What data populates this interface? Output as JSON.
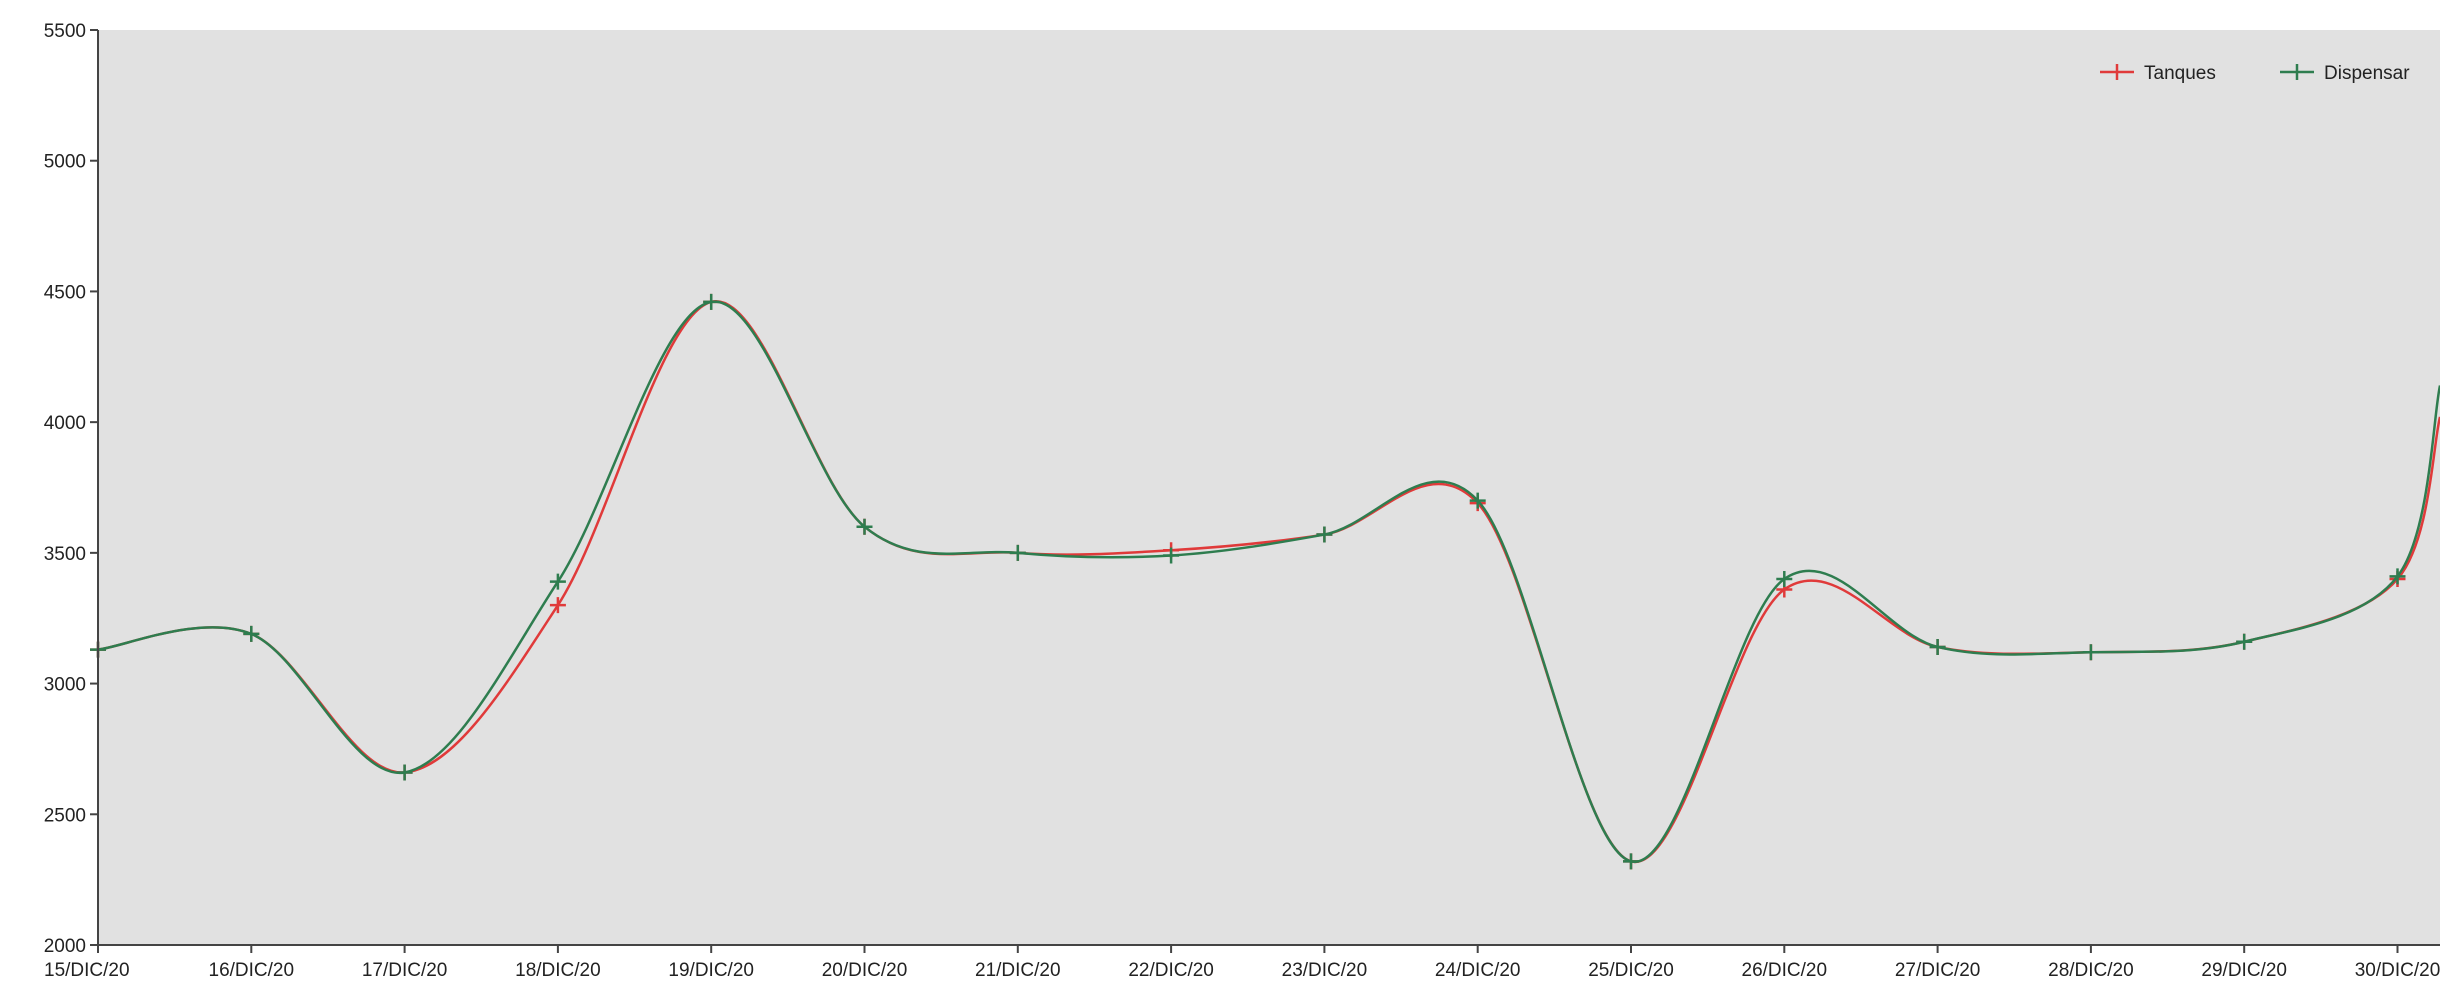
{
  "chart_data": {
    "type": "line",
    "title": "",
    "xlabel": "",
    "ylabel": "",
    "ylim": [
      2000,
      5500
    ],
    "yticks": [
      2000,
      2500,
      3000,
      3500,
      4000,
      4500,
      5000,
      5500
    ],
    "grid": false,
    "legend_position": "top-right",
    "categories": [
      "15/DIC/20",
      "16/DIC/20",
      "17/DIC/20",
      "18/DIC/20",
      "19/DIC/20",
      "20/DIC/20",
      "21/DIC/20",
      "22/DIC/20",
      "23/DIC/20",
      "24/DIC/20",
      "25/DIC/20",
      "26/DIC/20",
      "27/DIC/20",
      "28/DIC/20",
      "29/DIC/20",
      "30/DIC/20"
    ],
    "series": [
      {
        "name": "Tanques",
        "color": "#e03a3a",
        "values": [
          3130,
          3190,
          2660,
          3300,
          4460,
          3600,
          3500,
          3510,
          3570,
          3690,
          2320,
          3360,
          3140,
          3120,
          3160,
          3400
        ]
      },
      {
        "name": "Dispensar",
        "color": "#2e7d4f",
        "values": [
          3130,
          3190,
          2660,
          3390,
          4460,
          3600,
          3500,
          3490,
          3570,
          3700,
          2320,
          3400,
          3140,
          3120,
          3160,
          3410
        ]
      }
    ],
    "colors": {
      "background": "#e1e1e1",
      "axis": "#444444"
    }
  }
}
